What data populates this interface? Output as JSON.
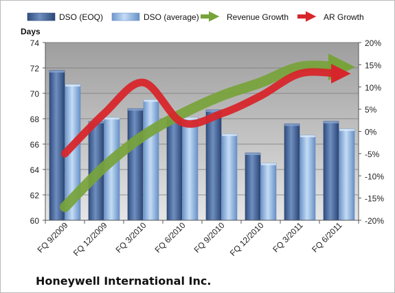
{
  "chart_data": {
    "type": "bar",
    "company": "Honeywell International Inc.",
    "ylabel": "Days",
    "categories": [
      "FQ 9/2009",
      "FQ 12/2009",
      "FQ 3/2010",
      "FQ 6/2010",
      "FQ 9/2010",
      "FQ 12/2010",
      "FQ 3/2011",
      "FQ 6/2011"
    ],
    "ylim": [
      60,
      74
    ],
    "y_ticks": [
      "60",
      "62",
      "64",
      "66",
      "68",
      "70",
      "72",
      "74"
    ],
    "y2lim": [
      -20,
      20
    ],
    "y2_ticks": [
      "-20%",
      "-15%",
      "-10%",
      "-5%",
      "0%",
      "5%",
      "10%",
      "15%",
      "20%"
    ],
    "grid": true,
    "legend_position": "top",
    "bar_series": [
      {
        "name": "DSO (EOQ)",
        "color": "#4a6a9c",
        "values": [
          71.8,
          67.8,
          68.8,
          68.1,
          68.7,
          65.3,
          67.6,
          67.8
        ]
      },
      {
        "name": "DSO (average)",
        "color": "#9bbde4",
        "values": [
          70.7,
          68.1,
          69.5,
          68.1,
          66.8,
          64.5,
          66.7,
          67.2
        ]
      }
    ],
    "line_series": [
      {
        "name": "Revenue Growth",
        "color": "#77a33a",
        "axis": "right",
        "values": [
          -17,
          -8,
          -1,
          4,
          8,
          11,
          14.5,
          14.5
        ]
      },
      {
        "name": "AR Growth",
        "color": "#d7262b",
        "axis": "right",
        "values": [
          -5,
          4,
          11,
          2,
          4,
          8,
          13,
          13
        ]
      }
    ]
  }
}
